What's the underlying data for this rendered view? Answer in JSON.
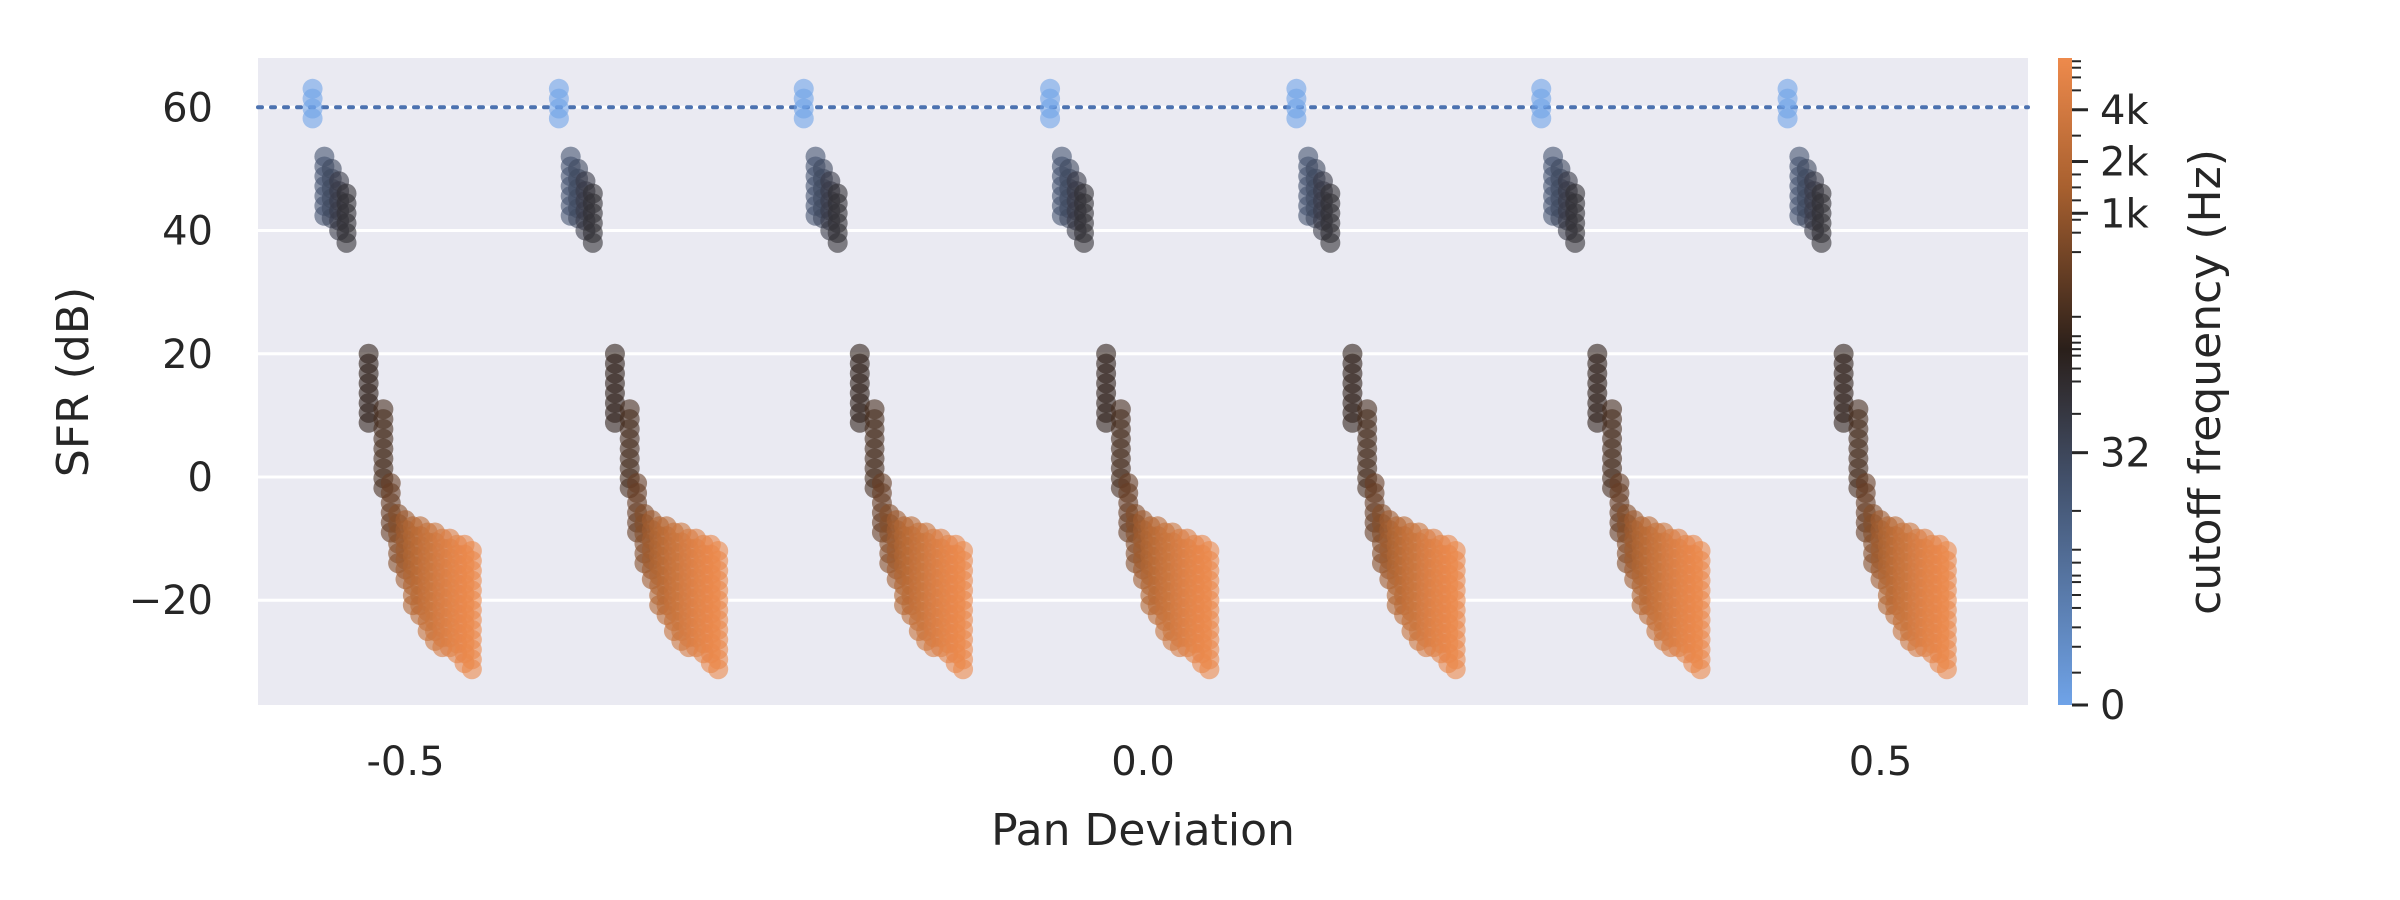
{
  "chart_data": {
    "type": "scatter",
    "title": "",
    "xlabel": "Pan Deviation",
    "ylabel": "SFR (dB)",
    "xlim": [
      -0.6,
      0.6
    ],
    "ylim": [
      -37,
      68
    ],
    "x_ticks": [
      {
        "value": -0.5,
        "label": "-0.5"
      },
      {
        "value": 0.0,
        "label": "0.0"
      },
      {
        "value": 0.5,
        "label": "0.5"
      }
    ],
    "y_ticks": [
      {
        "value": 60,
        "label": "60"
      },
      {
        "value": 40,
        "label": "40"
      },
      {
        "value": 20,
        "label": "20"
      },
      {
        "value": 0,
        "label": "0"
      },
      {
        "value": -20,
        "label": "−20"
      }
    ],
    "grid": true,
    "reference_line": {
      "y": 60,
      "style": "dotted",
      "color": "#4c72b0"
    },
    "cluster_centers": [
      -0.5,
      -0.333,
      -0.167,
      0.0,
      0.167,
      0.333,
      0.5
    ],
    "cluster_profile": [
      {
        "dx": -0.063,
        "sfr_min": 58,
        "sfr_max": 63,
        "cutoff_hz": 0
      },
      {
        "dx": -0.055,
        "sfr_min": 42,
        "sfr_max": 52,
        "cutoff_hz": 16
      },
      {
        "dx": -0.05,
        "sfr_min": 41,
        "sfr_max": 50,
        "cutoff_hz": 24
      },
      {
        "dx": -0.045,
        "sfr_min": 39,
        "sfr_max": 48,
        "cutoff_hz": 40
      },
      {
        "dx": -0.04,
        "sfr_min": 37,
        "sfr_max": 46,
        "cutoff_hz": 60
      },
      {
        "dx": -0.025,
        "sfr_min": 8,
        "sfr_max": 20,
        "cutoff_hz": 120
      },
      {
        "dx": -0.015,
        "sfr_min": -2,
        "sfr_max": 11,
        "cutoff_hz": 180
      },
      {
        "dx": -0.01,
        "sfr_min": -10,
        "sfr_max": -1,
        "cutoff_hz": 300
      },
      {
        "dx": -0.005,
        "sfr_min": -15,
        "sfr_max": -6,
        "cutoff_hz": 500
      },
      {
        "dx": 0.0,
        "sfr_min": -18,
        "sfr_max": -7,
        "cutoff_hz": 800
      },
      {
        "dx": 0.005,
        "sfr_min": -21,
        "sfr_max": -8,
        "cutoff_hz": 1100
      },
      {
        "dx": 0.01,
        "sfr_min": -23,
        "sfr_max": -8,
        "cutoff_hz": 1400
      },
      {
        "dx": 0.015,
        "sfr_min": -25,
        "sfr_max": -9,
        "cutoff_hz": 1800
      },
      {
        "dx": 0.02,
        "sfr_min": -27,
        "sfr_max": -9,
        "cutoff_hz": 2200
      },
      {
        "dx": 0.025,
        "sfr_min": -28,
        "sfr_max": -10,
        "cutoff_hz": 2700
      },
      {
        "dx": 0.03,
        "sfr_min": -29,
        "sfr_max": -10,
        "cutoff_hz": 3200
      },
      {
        "dx": 0.035,
        "sfr_min": -30,
        "sfr_max": -11,
        "cutoff_hz": 3700
      },
      {
        "dx": 0.04,
        "sfr_min": -31,
        "sfr_max": -11,
        "cutoff_hz": 4200
      },
      {
        "dx": 0.045,
        "sfr_min": -32,
        "sfr_max": -12,
        "cutoff_hz": 4700
      }
    ],
    "colorbar": {
      "label": "cutoff frequency (Hz)",
      "colors": [
        "#6fa3e8",
        "#42506a",
        "#2a1f1a",
        "#a8602f",
        "#ee8a4c"
      ],
      "ticks": [
        {
          "label": "4k",
          "level": 0.92
        },
        {
          "label": "2k",
          "level": 0.84
        },
        {
          "label": "1k",
          "level": 0.76
        },
        {
          "label": "32",
          "level": 0.39
        },
        {
          "label": "0",
          "level": 0.0
        }
      ]
    },
    "colors": {
      "plot_background": "#eaeaf2",
      "grid": "#ffffff",
      "reference_line": "#4c72b0"
    }
  }
}
